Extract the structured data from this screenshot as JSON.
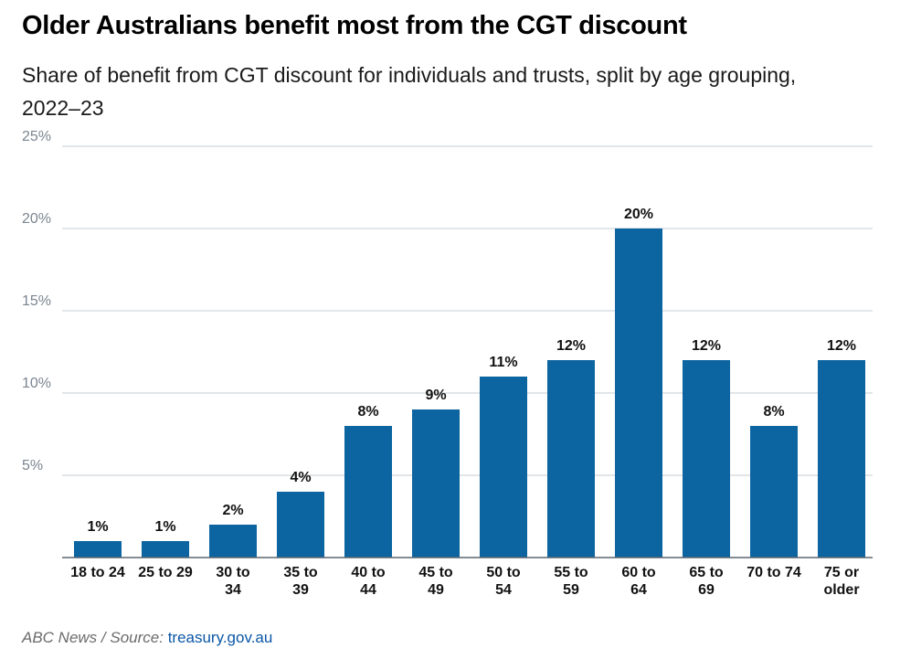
{
  "header": {
    "title": "Older Australians benefit most from the CGT discount",
    "subtitle": "Share of benefit from CGT discount for individuals and trusts, split by age grouping, 2022–23"
  },
  "footer": {
    "credit": "ABC News / Source:",
    "source_link": "treasury.gov.au"
  },
  "chart_data": {
    "type": "bar",
    "title": "Older Australians benefit most from the CGT discount",
    "subtitle": "Share of benefit from CGT discount for individuals and trusts, split by age grouping, 2022–23",
    "categories": [
      [
        "18 to 24"
      ],
      [
        "25 to 29"
      ],
      [
        "30 to",
        "34"
      ],
      [
        "35 to",
        "39"
      ],
      [
        "40 to",
        "44"
      ],
      [
        "45 to",
        "49"
      ],
      [
        "50 to",
        "54"
      ],
      [
        "55 to",
        "59"
      ],
      [
        "60 to",
        "64"
      ],
      [
        "65 to",
        "69"
      ],
      [
        "70 to 74"
      ],
      [
        "75 or",
        "older"
      ]
    ],
    "values": [
      1,
      1,
      2,
      4,
      8,
      9,
      11,
      12,
      20,
      12,
      8,
      12
    ],
    "data_labels": [
      "1%",
      "1%",
      "2%",
      "4%",
      "8%",
      "9%",
      "11%",
      "12%",
      "20%",
      "12%",
      "8%",
      "12%"
    ],
    "ylim": [
      0,
      25
    ],
    "yticks": [
      {
        "value": 5,
        "label": "5%"
      },
      {
        "value": 10,
        "label": "10%"
      },
      {
        "value": 15,
        "label": "15%"
      },
      {
        "value": 20,
        "label": "20%"
      },
      {
        "value": 25,
        "label": "25%"
      }
    ],
    "grid": true,
    "legend": "none",
    "bar_color": "#0c64a0",
    "grid_color": "#d9dde2",
    "axis_color": "#5c6670",
    "tick_label_color": "#7a8590"
  }
}
